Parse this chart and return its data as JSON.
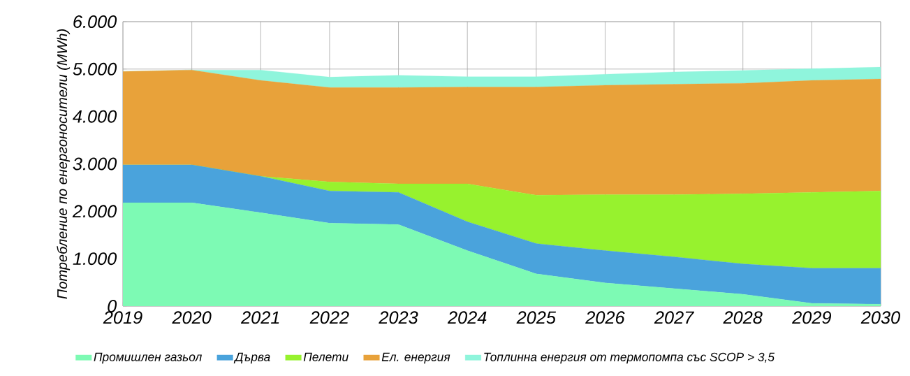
{
  "chart_data": {
    "type": "area",
    "stacked": true,
    "ylabel": "Потребление по енергоносители (MWh)",
    "x": [
      2019,
      2020,
      2021,
      2022,
      2023,
      2024,
      2025,
      2026,
      2027,
      2028,
      2029,
      2030
    ],
    "xlim": [
      2019,
      2030
    ],
    "xticks": [
      2019,
      2020,
      2021,
      2022,
      2023,
      2024,
      2025,
      2026,
      2027,
      2028,
      2029,
      2030
    ],
    "ylim": [
      0,
      6000
    ],
    "yticks": [
      0,
      {
        "value": 1000,
        "label": "1.000"
      },
      {
        "value": 2000,
        "label": "2.000"
      },
      {
        "value": 3000,
        "label": "3.000"
      },
      {
        "value": 4000,
        "label": "4.000"
      },
      {
        "value": 5000,
        "label": "5.000"
      },
      {
        "value": 6000,
        "label": "6.000"
      }
    ],
    "grid": true,
    "legend": "bottom",
    "series": [
      {
        "name": "Промишлен газьол",
        "color": "#7dfab4",
        "values": [
          2180,
          2180,
          1970,
          1750,
          1720,
          1170,
          680,
          490,
          370,
          250,
          60,
          40
        ]
      },
      {
        "name": "Дърва",
        "color": "#4aa3dc",
        "values": [
          800,
          800,
          770,
          680,
          680,
          610,
          640,
          680,
          670,
          640,
          740,
          760
        ]
      },
      {
        "name": "Пелети",
        "color": "#97f22e",
        "values": [
          0,
          0,
          0,
          190,
          180,
          800,
          1020,
          1180,
          1310,
          1480,
          1600,
          1630
        ]
      },
      {
        "name": "Ел. енергия",
        "color": "#e8a23a",
        "values": [
          1970,
          2000,
          2020,
          1990,
          2030,
          2040,
          2280,
          2310,
          2330,
          2330,
          2360,
          2360
        ]
      },
      {
        "name": "Топлинна енергия от термопомпа със SCOP > 3,5",
        "color": "#8ff5dc",
        "values": [
          0,
          0,
          220,
          220,
          260,
          220,
          220,
          230,
          260,
          270,
          250,
          250
        ]
      }
    ]
  }
}
